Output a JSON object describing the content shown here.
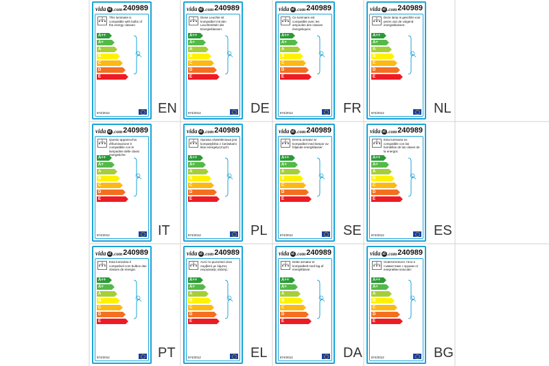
{
  "brand": {
    "name_left": "vida",
    "name_mark": "xl",
    "name_right": ".com"
  },
  "product_code": "240989",
  "regulation": "874/2012",
  "energy_classes": [
    {
      "label": "A++",
      "color": "#2b9a37"
    },
    {
      "label": "A+",
      "color": "#54b948"
    },
    {
      "label": "A",
      "color": "#a6ce39"
    },
    {
      "label": "B",
      "color": "#fff200"
    },
    {
      "label": "C",
      "color": "#fdb913"
    },
    {
      "label": "D",
      "color": "#f37021"
    },
    {
      "label": "E",
      "color": "#ed1c24"
    }
  ],
  "colors": {
    "frame": "#19a3d7",
    "eu_flag": "#1a3d9e"
  },
  "labels": [
    {
      "lang": "EN",
      "text": "This luminaire is compatible with bulbs of the energy classes:"
    },
    {
      "lang": "DE",
      "text": "Diese Leuchte ist kompatibel mit den Leuchtmitteln der Energieklassen:"
    },
    {
      "lang": "FR",
      "text": "Ce luminaire est compatible avec les ampoules des classes énergétiques:"
    },
    {
      "lang": "NL",
      "text": "Deze lamp is geschikt voor peren van de volgend energieklassen:"
    },
    {
      "lang": "IT",
      "text": "Questo apparecchio d'illuminazione è compatibile con le lampadine delle classi energetiche:"
    },
    {
      "lang": "PL",
      "text": "Oprawa oświetleniowa jest kompatybilna z żarówkami klas energetycznych:"
    },
    {
      "lang": "SE",
      "text": "Denna armatur är kompatibel med lampor av följande energiklasser:"
    },
    {
      "lang": "ES",
      "text": "Esta luminaria es compatible con las bombillas de las clases de la energía:"
    },
    {
      "lang": "PT",
      "text": "Esta luminária é compatível com bulbos das classes de energia:"
    },
    {
      "lang": "EL",
      "text": "Αυτό το φωτιστικό είναι συμβατό με λάμπες ενεργειακής κλάσης:"
    },
    {
      "lang": "DA",
      "text": "Dette armatur er kompatibelt med lag af energiklasse:"
    },
    {
      "lang": "BG",
      "text": "Осветителното тяло е съвместимо с крушки от енергийни класове:"
    }
  ]
}
